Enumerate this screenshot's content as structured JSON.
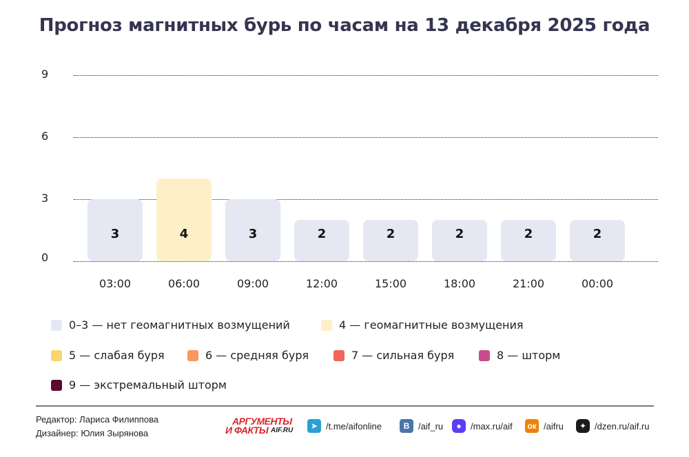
{
  "title": "Прогноз магнитных бурь по часам на 13 декабря 2025 года",
  "chart_data": {
    "type": "bar",
    "title": "Прогноз магнитных бурь по часам на 13 декабря 2025 года",
    "xlabel": "",
    "ylabel": "",
    "categories": [
      "03:00",
      "06:00",
      "09:00",
      "12:00",
      "15:00",
      "18:00",
      "21:00",
      "00:00"
    ],
    "values": [
      3,
      4,
      3,
      2,
      2,
      2,
      2,
      2
    ],
    "bar_colors": [
      "#e5e8f2",
      "#fdefc8",
      "#e5e8f2",
      "#e5e8f2",
      "#e5e8f2",
      "#e5e8f2",
      "#e5e8f2",
      "#e5e8f2"
    ],
    "ylim": [
      0,
      9
    ],
    "yticks": [
      "0",
      "3",
      "6",
      "9"
    ],
    "grid": true,
    "grid_style": "dotted",
    "data_labels": true,
    "legend_position": "bottom",
    "legend": [
      {
        "label": "0–3 — нет геомагнитных возмущений",
        "color": "#e5e8f2"
      },
      {
        "label": "4 — геомагнитные возмущения",
        "color": "#fdefc8"
      },
      {
        "label": "5 — слабая буря",
        "color": "#fbd56d"
      },
      {
        "label": "6 — средняя буря",
        "color": "#f9975f"
      },
      {
        "label": "7 — сильная буря",
        "color": "#f2645a"
      },
      {
        "label": "8 — шторм",
        "color": "#c94b8b"
      },
      {
        "label": "9 — экстремальный шторм",
        "color": "#5c0a30"
      }
    ]
  },
  "footer": {
    "editor": "Редактор: Лариса Филиппова",
    "designer": "Дизайнер: Юлия Зырянова",
    "logo": {
      "line1": "АРГУМЕНТЫ",
      "line2": "И ФАКТЫ",
      "line3": "AIF.RU"
    },
    "socials": [
      {
        "icon": "telegram-icon",
        "label": "/t.me/aifonline",
        "color": "#2a9fd8",
        "glyph": "➤"
      },
      {
        "icon": "vk-icon",
        "label": "/aif_ru",
        "color": "#4a76a8",
        "glyph": "В"
      },
      {
        "icon": "max-icon",
        "label": "/max.ru/aif",
        "color": "#5b3df5",
        "glyph": "●"
      },
      {
        "icon": "odnoklassniki-icon",
        "label": "/aifru",
        "color": "#ee8208",
        "glyph": "ок"
      },
      {
        "icon": "dzen-icon",
        "label": "/dzen.ru/aif.ru",
        "color": "#1b1b1b",
        "glyph": "✦"
      }
    ]
  }
}
